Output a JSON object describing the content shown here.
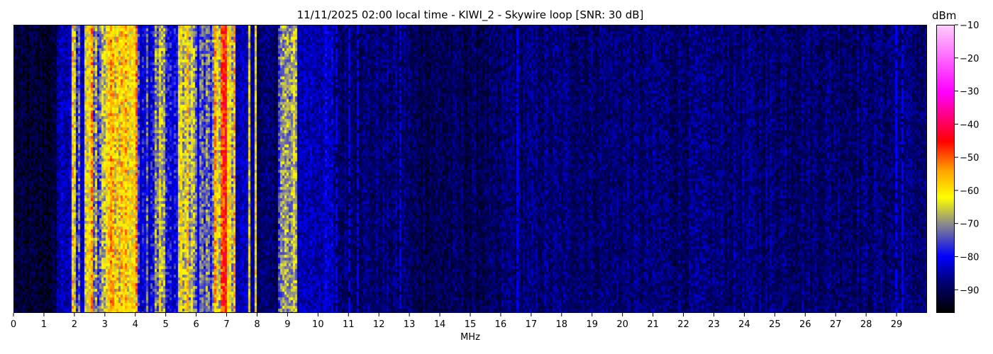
{
  "chart_data": {
    "type": "heatmap",
    "title": "11/11/2025 02:00 local time - KIWI_2 - Skywire loop [SNR: 30 dB]",
    "xlabel": "MHz",
    "ylabel": "",
    "xlim": [
      0,
      30
    ],
    "xticks": [
      "0",
      "1",
      "2",
      "3",
      "4",
      "5",
      "6",
      "7",
      "8",
      "9",
      "10",
      "11",
      "12",
      "13",
      "14",
      "15",
      "16",
      "17",
      "18",
      "19",
      "20",
      "21",
      "22",
      "23",
      "24",
      "25",
      "26",
      "27",
      "28",
      "29"
    ],
    "colorbar": {
      "label": "dBm",
      "range": [
        -97,
        -10
      ],
      "ticks": [
        "−10",
        "−20",
        "−30",
        "−40",
        "−50",
        "−60",
        "−70",
        "−80",
        "−90"
      ],
      "tick_values": [
        -10,
        -20,
        -30,
        -40,
        -50,
        -60,
        -70,
        -80,
        -90
      ],
      "colormap": [
        {
          "v": -97,
          "c": "#000000"
        },
        {
          "v": -88,
          "c": "#00006e"
        },
        {
          "v": -80,
          "c": "#0000ff"
        },
        {
          "v": -70,
          "c": "#8c8c8c"
        },
        {
          "v": -62,
          "c": "#ffff00"
        },
        {
          "v": -54,
          "c": "#ffa500"
        },
        {
          "v": -45,
          "c": "#ff0000"
        },
        {
          "v": -30,
          "c": "#ff00ff"
        },
        {
          "v": -10,
          "c": "#ffccff"
        }
      ]
    },
    "approx_mean_level_by_band_dbm": [
      {
        "from": 0,
        "to": 1.4,
        "level": -93
      },
      {
        "from": 1.4,
        "to": 1.9,
        "level": -84
      },
      {
        "from": 1.9,
        "to": 2.0,
        "level": -63
      },
      {
        "from": 2.0,
        "to": 2.3,
        "level": -78
      },
      {
        "from": 2.3,
        "to": 2.6,
        "level": -61
      },
      {
        "from": 2.6,
        "to": 3.0,
        "level": -72
      },
      {
        "from": 3.0,
        "to": 4.05,
        "level": -59
      },
      {
        "from": 4.05,
        "to": 4.6,
        "level": -76
      },
      {
        "from": 4.6,
        "to": 5.0,
        "level": -68
      },
      {
        "from": 5.0,
        "to": 5.4,
        "level": -80
      },
      {
        "from": 5.4,
        "to": 5.9,
        "level": -65
      },
      {
        "from": 5.9,
        "to": 6.6,
        "level": -75
      },
      {
        "from": 6.6,
        "to": 6.8,
        "level": -62
      },
      {
        "from": 6.8,
        "to": 7.0,
        "level": -50
      },
      {
        "from": 7.0,
        "to": 7.3,
        "level": -63
      },
      {
        "from": 7.3,
        "to": 7.7,
        "level": -84
      },
      {
        "from": 7.7,
        "to": 7.75,
        "level": -60
      },
      {
        "from": 7.75,
        "to": 7.93,
        "level": -86
      },
      {
        "from": 7.93,
        "to": 7.98,
        "level": -60
      },
      {
        "from": 7.98,
        "to": 8.7,
        "level": -89
      },
      {
        "from": 8.7,
        "to": 9.3,
        "level": -71
      },
      {
        "from": 9.3,
        "to": 10.5,
        "level": -84
      },
      {
        "from": 10.5,
        "to": 13.0,
        "level": -88
      },
      {
        "from": 13.0,
        "to": 16.0,
        "level": -90
      },
      {
        "from": 16.0,
        "to": 30.0,
        "level": -88
      }
    ],
    "narrow_carriers_mhz": [
      10.6,
      11.0,
      11.3,
      12.7,
      16.55,
      29.0,
      29.2
    ]
  }
}
